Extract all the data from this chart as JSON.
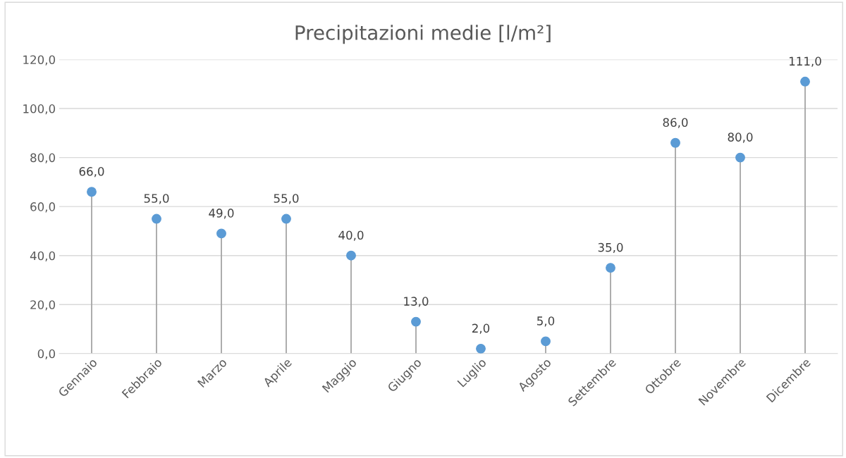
{
  "chart_data": {
    "type": "lollipop",
    "title": "Precipitazioni medie [l/m²]",
    "categories": [
      "Gennaio",
      "Febbraio",
      "Marzo",
      "Aprile",
      "Maggio",
      "Giugno",
      "Luglio",
      "Agosto",
      "Settembre",
      "Ottobre",
      "Novembre",
      "Dicembre"
    ],
    "values": [
      66,
      55,
      49,
      55,
      40,
      13,
      2,
      5,
      35,
      86,
      80,
      111
    ],
    "value_labels": [
      "66,0",
      "55,0",
      "49,0",
      "55,0",
      "40,0",
      "13,0",
      "2,0",
      "5,0",
      "35,0",
      "86,0",
      "80,0",
      "111,0"
    ],
    "color": "#5b9bd5",
    "ylim": [
      0,
      120
    ],
    "yticks": [
      {
        "value": 0,
        "label": "0,0"
      },
      {
        "value": 20,
        "label": "20,0"
      },
      {
        "value": 40,
        "label": "40,0"
      },
      {
        "value": 60,
        "label": "60,0"
      },
      {
        "value": 80,
        "label": "80,0"
      },
      {
        "value": 100,
        "label": "100,0"
      },
      {
        "value": 120,
        "label": "120,0"
      }
    ],
    "grid": "y",
    "legend": false,
    "marker": "circle"
  }
}
